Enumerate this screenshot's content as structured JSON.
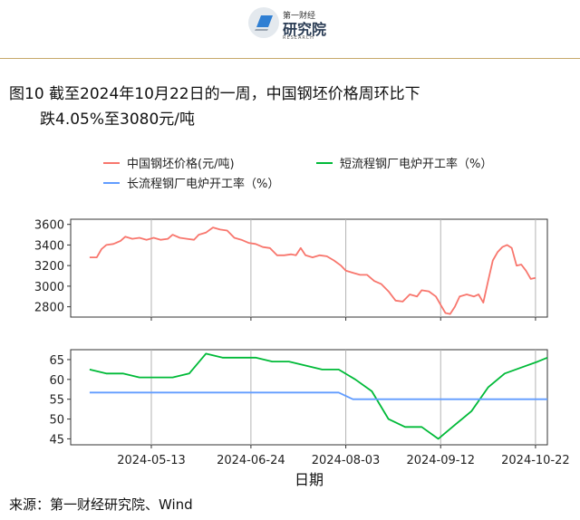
{
  "header": {
    "logo_name": "第一财经",
    "logo_inst": "研究院",
    "logo_sub": "RESEARCH"
  },
  "figure": {
    "number": "图10",
    "title_line1": "截至2024年10月22日的一周，中国钢坯价格周环比下",
    "title_line2": "跌4.05%至3080元/吨"
  },
  "source": "来源：第一财经研究院、Wind",
  "colors": {
    "billet": "#f8766d",
    "eaf": "#00ba38",
    "bof": "#619cff",
    "gold_rule": "#c7a86a"
  },
  "chart_data": [
    {
      "type": "line",
      "panel": "top",
      "xlabel": "日期",
      "ylim": [
        2700,
        3650
      ],
      "yticks": [
        2800,
        3000,
        3200,
        3400,
        3600
      ],
      "xlim": [
        "2024-04-09",
        "2024-10-27"
      ],
      "xticks": [
        "2024-05-13",
        "2024-06-24",
        "2024-08-03",
        "2024-09-12",
        "2024-10-22"
      ],
      "grid": true,
      "legend_position": "top",
      "series": [
        {
          "name": "中国钢坯价格(元/吨)",
          "color": "#f8766d",
          "points": [
            [
              "2024-04-17",
              3280
            ],
            [
              "2024-04-20",
              3280
            ],
            [
              "2024-04-22",
              3360
            ],
            [
              "2024-04-24",
              3400
            ],
            [
              "2024-04-27",
              3410
            ],
            [
              "2024-04-30",
              3440
            ],
            [
              "2024-05-02",
              3480
            ],
            [
              "2024-05-05",
              3460
            ],
            [
              "2024-05-08",
              3470
            ],
            [
              "2024-05-11",
              3450
            ],
            [
              "2024-05-14",
              3470
            ],
            [
              "2024-05-17",
              3450
            ],
            [
              "2024-05-20",
              3460
            ],
            [
              "2024-05-22",
              3500
            ],
            [
              "2024-05-25",
              3470
            ],
            [
              "2024-05-28",
              3460
            ],
            [
              "2024-05-31",
              3450
            ],
            [
              "2024-06-02",
              3500
            ],
            [
              "2024-06-05",
              3520
            ],
            [
              "2024-06-08",
              3570
            ],
            [
              "2024-06-11",
              3550
            ],
            [
              "2024-06-14",
              3540
            ],
            [
              "2024-06-17",
              3470
            ],
            [
              "2024-06-20",
              3450
            ],
            [
              "2024-06-23",
              3420
            ],
            [
              "2024-06-26",
              3410
            ],
            [
              "2024-06-29",
              3380
            ],
            [
              "2024-07-02",
              3370
            ],
            [
              "2024-07-05",
              3300
            ],
            [
              "2024-07-08",
              3300
            ],
            [
              "2024-07-11",
              3310
            ],
            [
              "2024-07-13",
              3300
            ],
            [
              "2024-07-15",
              3370
            ],
            [
              "2024-07-17",
              3300
            ],
            [
              "2024-07-20",
              3280
            ],
            [
              "2024-07-23",
              3300
            ],
            [
              "2024-07-26",
              3290
            ],
            [
              "2024-07-29",
              3250
            ],
            [
              "2024-08-01",
              3200
            ],
            [
              "2024-08-03",
              3150
            ],
            [
              "2024-08-06",
              3130
            ],
            [
              "2024-08-09",
              3110
            ],
            [
              "2024-08-12",
              3110
            ],
            [
              "2024-08-15",
              3050
            ],
            [
              "2024-08-18",
              3020
            ],
            [
              "2024-08-21",
              2950
            ],
            [
              "2024-08-24",
              2860
            ],
            [
              "2024-08-27",
              2850
            ],
            [
              "2024-08-30",
              2920
            ],
            [
              "2024-09-02",
              2900
            ],
            [
              "2024-09-04",
              2960
            ],
            [
              "2024-09-07",
              2950
            ],
            [
              "2024-09-10",
              2900
            ],
            [
              "2024-09-12",
              2820
            ],
            [
              "2024-09-14",
              2740
            ],
            [
              "2024-09-16",
              2730
            ],
            [
              "2024-09-18",
              2800
            ],
            [
              "2024-09-20",
              2900
            ],
            [
              "2024-09-23",
              2920
            ],
            [
              "2024-09-26",
              2900
            ],
            [
              "2024-09-28",
              2920
            ],
            [
              "2024-09-30",
              2840
            ],
            [
              "2024-10-02",
              3050
            ],
            [
              "2024-10-04",
              3250
            ],
            [
              "2024-10-06",
              3330
            ],
            [
              "2024-10-08",
              3380
            ],
            [
              "2024-10-10",
              3400
            ],
            [
              "2024-10-12",
              3370
            ],
            [
              "2024-10-14",
              3200
            ],
            [
              "2024-10-16",
              3210
            ],
            [
              "2024-10-18",
              3150
            ],
            [
              "2024-10-20",
              3070
            ],
            [
              "2024-10-22",
              3080
            ]
          ]
        }
      ]
    },
    {
      "type": "line",
      "panel": "bottom",
      "xlabel": "日期",
      "ylim": [
        43.5,
        67.5
      ],
      "yticks": [
        45,
        50,
        55,
        60,
        65
      ],
      "xlim": [
        "2024-04-09",
        "2024-10-27"
      ],
      "xticks": [
        "2024-05-13",
        "2024-06-24",
        "2024-08-03",
        "2024-09-12",
        "2024-10-22"
      ],
      "grid": true,
      "series": [
        {
          "name": "短流程钢厂电炉开工率（%）",
          "color": "#00ba38",
          "points": [
            [
              "2024-04-17",
              62.5
            ],
            [
              "2024-04-24",
              61.5
            ],
            [
              "2024-05-01",
              61.5
            ],
            [
              "2024-05-08",
              60.5
            ],
            [
              "2024-05-15",
              60.5
            ],
            [
              "2024-05-22",
              60.5
            ],
            [
              "2024-05-29",
              61.5
            ],
            [
              "2024-06-05",
              66.5
            ],
            [
              "2024-06-12",
              65.5
            ],
            [
              "2024-06-19",
              65.5
            ],
            [
              "2024-06-26",
              65.5
            ],
            [
              "2024-07-03",
              64.5
            ],
            [
              "2024-07-10",
              64.5
            ],
            [
              "2024-07-17",
              63.5
            ],
            [
              "2024-07-24",
              62.5
            ],
            [
              "2024-07-31",
              62.5
            ],
            [
              "2024-08-07",
              60.0
            ],
            [
              "2024-08-14",
              57.0
            ],
            [
              "2024-08-21",
              50.0
            ],
            [
              "2024-08-28",
              48.0
            ],
            [
              "2024-09-04",
              48.0
            ],
            [
              "2024-09-11",
              45.0
            ],
            [
              "2024-09-18",
              48.5
            ],
            [
              "2024-09-25",
              52.0
            ],
            [
              "2024-10-02",
              58.0
            ],
            [
              "2024-10-09",
              61.5
            ],
            [
              "2024-10-16",
              63.0
            ],
            [
              "2024-10-23",
              64.5
            ],
            [
              "2024-10-27",
              65.5
            ]
          ]
        },
        {
          "name": "长流程钢厂电炉开工率（%）",
          "color": "#619cff",
          "points": [
            [
              "2024-04-17",
              56.7
            ],
            [
              "2024-07-31",
              56.7
            ],
            [
              "2024-08-06",
              55.0
            ],
            [
              "2024-10-27",
              55.0
            ]
          ]
        }
      ]
    }
  ]
}
